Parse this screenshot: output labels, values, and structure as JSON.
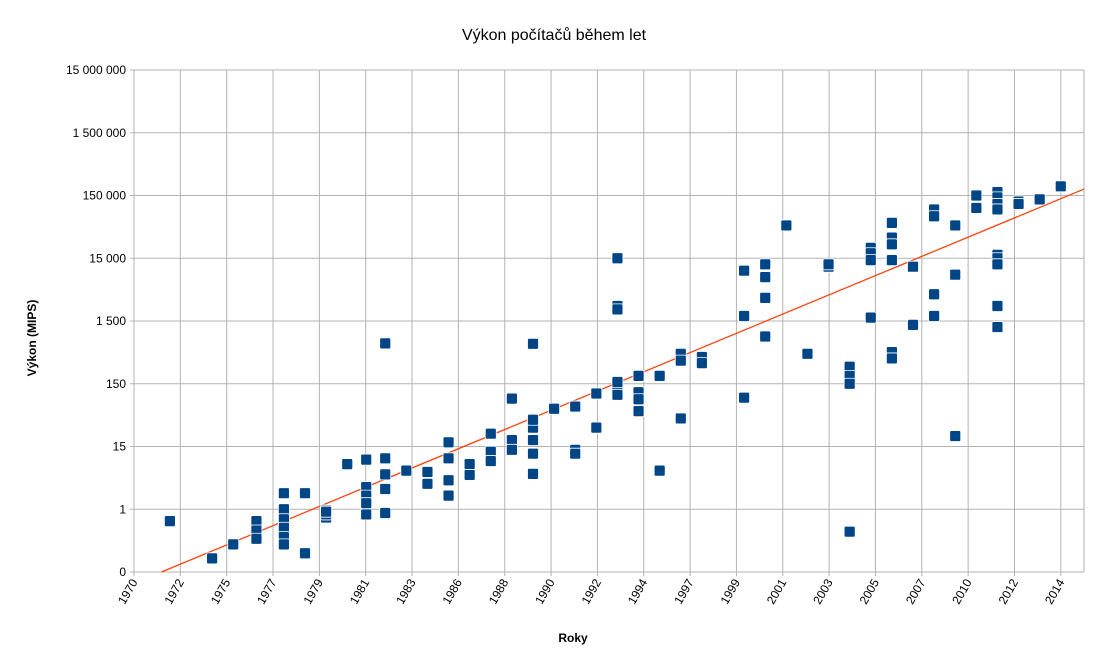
{
  "chart_data": {
    "type": "scatter",
    "title": "Výkon počítačů během let",
    "xlabel": "Roky",
    "ylabel": "Výkon (MIPS)",
    "xlim": [
      1970,
      2015
    ],
    "x_tick_labels": [
      "1970",
      "1972",
      "1975",
      "1977",
      "1979",
      "1981",
      "1983",
      "1986",
      "1988",
      "1990",
      "1992",
      "1994",
      "1997",
      "1999",
      "2001",
      "2003",
      "2005",
      "2007",
      "2010",
      "2012",
      "2014"
    ],
    "y_tick_labels": [
      "0",
      "1",
      "15",
      "150",
      "1 500",
      "15 000",
      "150 000",
      "1 500 000",
      "15 000 000"
    ],
    "y_scale": "log",
    "grid": true,
    "marker_color": "#004586",
    "trend_color": "#ff420e",
    "trendline": {
      "x": [
        1971.3,
        2015
      ],
      "y": [
        0.007,
        190000
      ]
    },
    "series": [
      {
        "points": [
          [
            1971.7,
            0.6
          ],
          [
            1973.7,
            0.12
          ],
          [
            1974.7,
            0.22
          ],
          [
            1975.8,
            0.6
          ],
          [
            1975.8,
            0.4
          ],
          [
            1975.8,
            0.28
          ],
          [
            1977.1,
            2.0
          ],
          [
            1977.1,
            1.0
          ],
          [
            1977.1,
            0.65
          ],
          [
            1977.1,
            0.45
          ],
          [
            1977.1,
            0.3
          ],
          [
            1977.1,
            0.22
          ],
          [
            1978.1,
            2.0
          ],
          [
            1978.1,
            0.15
          ],
          [
            1979.1,
            0.95
          ],
          [
            1979.1,
            0.7
          ],
          [
            1979.1,
            0.8
          ],
          [
            1979.1,
            0.9
          ],
          [
            1980.1,
            7.0
          ],
          [
            1981.0,
            8.5
          ],
          [
            1981.0,
            2.6
          ],
          [
            1981.0,
            1.8
          ],
          [
            1981.0,
            1.3
          ],
          [
            1981.0,
            0.8
          ],
          [
            1981.9,
            9.0
          ],
          [
            1981.9,
            4.5
          ],
          [
            1981.9,
            2.4
          ],
          [
            1981.9,
            0.85
          ],
          [
            1981.9,
            660
          ],
          [
            1982.9,
            5.3
          ],
          [
            1983.9,
            5.0
          ],
          [
            1983.9,
            3.0
          ],
          [
            1984.9,
            9.0
          ],
          [
            1984.9,
            17.5
          ],
          [
            1984.9,
            3.5
          ],
          [
            1984.9,
            1.8
          ],
          [
            1985.9,
            7.0
          ],
          [
            1985.9,
            4.4
          ],
          [
            1986.9,
            10.5
          ],
          [
            1986.9,
            12.0
          ],
          [
            1986.9,
            8.0
          ],
          [
            1986.9,
            24.0
          ],
          [
            1987.9,
            19.0
          ],
          [
            1987.9,
            13.0
          ],
          [
            1987.9,
            87.0
          ],
          [
            1988.9,
            30.0
          ],
          [
            1988.9,
            40.0
          ],
          [
            1988.9,
            19.0
          ],
          [
            1988.9,
            11.0
          ],
          [
            1988.9,
            4.6
          ],
          [
            1988.9,
            650
          ],
          [
            1989.9,
            60.0
          ],
          [
            1990.9,
            65.0
          ],
          [
            1990.9,
            13.0
          ],
          [
            1990.9,
            11.0
          ],
          [
            1991.9,
            105
          ],
          [
            1991.9,
            30.0
          ],
          [
            1991.9,
            105
          ],
          [
            1992.9,
            15000
          ],
          [
            1992.9,
            2600
          ],
          [
            1992.9,
            2300
          ],
          [
            1992.9,
            120
          ],
          [
            1992.9,
            160
          ],
          [
            1992.9,
            100
          ],
          [
            1993.9,
            200
          ],
          [
            1993.9,
            110
          ],
          [
            1993.9,
            85
          ],
          [
            1993.9,
            55
          ],
          [
            1994.9,
            200
          ],
          [
            1994.9,
            5.3
          ],
          [
            1995.9,
            450
          ],
          [
            1995.9,
            350
          ],
          [
            1995.9,
            42.0
          ],
          [
            1996.9,
            400
          ],
          [
            1996.9,
            320
          ],
          [
            1998.9,
            9500
          ],
          [
            1998.9,
            1800
          ],
          [
            1998.9,
            90.0
          ],
          [
            1999.9,
            12000
          ],
          [
            1999.9,
            7500
          ],
          [
            1999.9,
            3500
          ],
          [
            1999.9,
            850
          ],
          [
            2000.9,
            50000
          ],
          [
            2001.9,
            450
          ],
          [
            2002.9,
            11000
          ],
          [
            2002.9,
            12000
          ],
          [
            2003.9,
            280
          ],
          [
            2003.9,
            200
          ],
          [
            2003.9,
            150
          ],
          [
            2003.9,
            0.38
          ],
          [
            2004.9,
            22000
          ],
          [
            2004.9,
            18000
          ],
          [
            2004.9,
            14000
          ],
          [
            2004.9,
            1700
          ],
          [
            2005.9,
            55000
          ],
          [
            2005.9,
            32000
          ],
          [
            2005.9,
            25000
          ],
          [
            2005.9,
            14000
          ],
          [
            2005.9,
            480
          ],
          [
            2005.9,
            380
          ],
          [
            2006.9,
            11000
          ],
          [
            2006.9,
            1300
          ],
          [
            2007.9,
            90000
          ],
          [
            2007.9,
            70000
          ],
          [
            2007.9,
            4000
          ],
          [
            2007.9,
            1800
          ],
          [
            2008.9,
            50000
          ],
          [
            2008.9,
            8200
          ],
          [
            2008.9,
            22.0
          ],
          [
            2009.9,
            150000
          ],
          [
            2009.9,
            95000
          ],
          [
            2010.9,
            170000
          ],
          [
            2010.9,
            140000
          ],
          [
            2010.9,
            110000
          ],
          [
            2010.9,
            90000
          ],
          [
            2010.9,
            17000
          ],
          [
            2010.9,
            15000
          ],
          [
            2010.9,
            12000
          ],
          [
            2010.9,
            2600
          ],
          [
            2010.9,
            1200
          ],
          [
            2011.9,
            120000
          ],
          [
            2011.9,
            110000
          ],
          [
            2012.9,
            130000
          ],
          [
            2013.9,
            210000
          ]
        ]
      }
    ]
  }
}
